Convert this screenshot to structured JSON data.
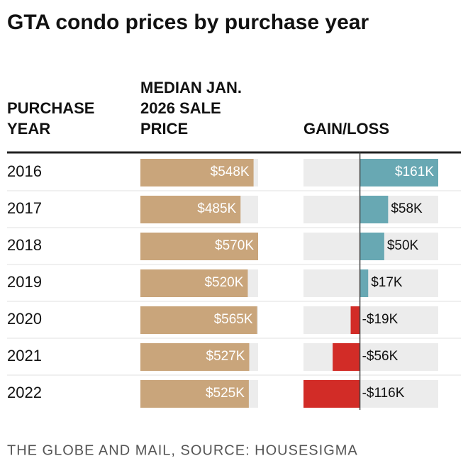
{
  "chart_data": {
    "type": "bar-table",
    "title": "GTA condo prices by purchase year",
    "headers": [
      [
        "PURCHASE",
        "YEAR"
      ],
      [
        "MEDIAN JAN.",
        "2026 SALE",
        "PRICE"
      ],
      [
        "GAIN/LOSS"
      ]
    ],
    "categories": [
      "2016",
      "2017",
      "2018",
      "2019",
      "2020",
      "2021",
      "2022"
    ],
    "series": [
      {
        "name": "MEDIAN JAN. 2026 SALE PRICE",
        "color": "#c9a57b",
        "values": [
          548000,
          485000,
          570000,
          520000,
          565000,
          527000,
          525000
        ],
        "value_labels": [
          "$548K",
          "$485K",
          "$570K",
          "$520K",
          "$565K",
          "$527K",
          "$525K"
        ],
        "xlim": [
          0,
          570000
        ]
      },
      {
        "name": "GAIN/LOSS",
        "color": "#68a8b3",
        "negative_color": "#d22c27",
        "values": [
          161000,
          58000,
          50000,
          17000,
          -19000,
          -56000,
          -116000
        ],
        "value_labels": [
          "$161K",
          "$58K",
          "$50K",
          "$17K",
          "-$19K",
          "-$56K",
          "-$116K"
        ],
        "xlim": [
          -116000,
          161000
        ]
      }
    ],
    "track_color": "#ececec",
    "source": "THE GLOBE AND MAIL, SOURCE: HOUSESIGMA"
  }
}
